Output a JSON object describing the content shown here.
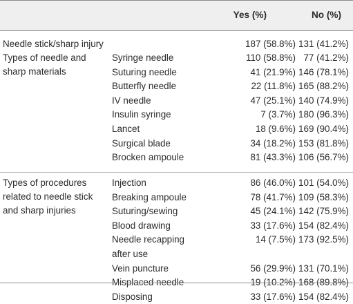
{
  "header": {
    "col_category": "",
    "col_subcategory": "",
    "col_yes": "Yes (%)",
    "col_no": "No (%)"
  },
  "sections": [
    {
      "category_lines": [
        "Needle stick/sharp injury"
      ],
      "rows": [
        {
          "sub": "",
          "sub2": "",
          "yes": "187 (58.8%)",
          "no": "131 (41.2%)"
        }
      ]
    },
    {
      "category_lines": [
        "Types of needle and",
        "sharp materials"
      ],
      "rows": [
        {
          "sub": "Syringe needle",
          "sub2": "",
          "yes": "110 (58.8%)",
          "no": "77 (41.2%)"
        },
        {
          "sub": "Suturing needle",
          "sub2": "",
          "yes": "41 (21.9%)",
          "no": "146 (78.1%)"
        },
        {
          "sub": "Butterfly needle",
          "sub2": "",
          "yes": "22 (11.8%)",
          "no": "165 (88.2%)"
        },
        {
          "sub": "IV needle",
          "sub2": "",
          "yes": "47 (25.1%)",
          "no": "140 (74.9%)"
        },
        {
          "sub": "Insulin syringe",
          "sub2": "",
          "yes": "7 (3.7%)",
          "no": "180 (96.3%)"
        },
        {
          "sub": "Lancet",
          "sub2": "",
          "yes": "18 (9.6%)",
          "no": "169 (90.4%)"
        },
        {
          "sub": "Surgical blade",
          "sub2": "",
          "yes": "34 (18.2%)",
          "no": "153 (81.8%)"
        },
        {
          "sub": "Brocken ampoule",
          "sub2": "",
          "yes": "81 (43.3%)",
          "no": "106 (56.7%)"
        }
      ]
    },
    {
      "category_lines": [
        "Types of procedures",
        "related to needle stick",
        "and sharp injuries"
      ],
      "rows": [
        {
          "sub": "Injection",
          "sub2": "",
          "yes": "86 (46.0%)",
          "no": "101 (54.0%)"
        },
        {
          "sub": "Breaking ampoule",
          "sub2": "",
          "yes": "78 (41.7%)",
          "no": "109 (58.3%)"
        },
        {
          "sub": "Suturing/sewing",
          "sub2": "",
          "yes": "45 (24.1%)",
          "no": "142 (75.9%)"
        },
        {
          "sub": "Blood drawing",
          "sub2": "",
          "yes": "33 (17.6%)",
          "no": "154 (82.4%)"
        },
        {
          "sub": "Needle recapping",
          "sub2": "after use",
          "yes": "14 (7.5%)",
          "no": "173 (92.5%)"
        },
        {
          "sub": "Vein puncture",
          "sub2": "",
          "yes": "56 (29.9%)",
          "no": "131 (70.1%)"
        },
        {
          "sub": "Misplaced needle",
          "sub2": "",
          "yes": "19 (10.2%)",
          "no": "168 (89.8%)"
        },
        {
          "sub": "Disposing",
          "sub2": "",
          "yes": "33 (17.6%)",
          "no": "154 (82.4%)"
        }
      ]
    }
  ]
}
